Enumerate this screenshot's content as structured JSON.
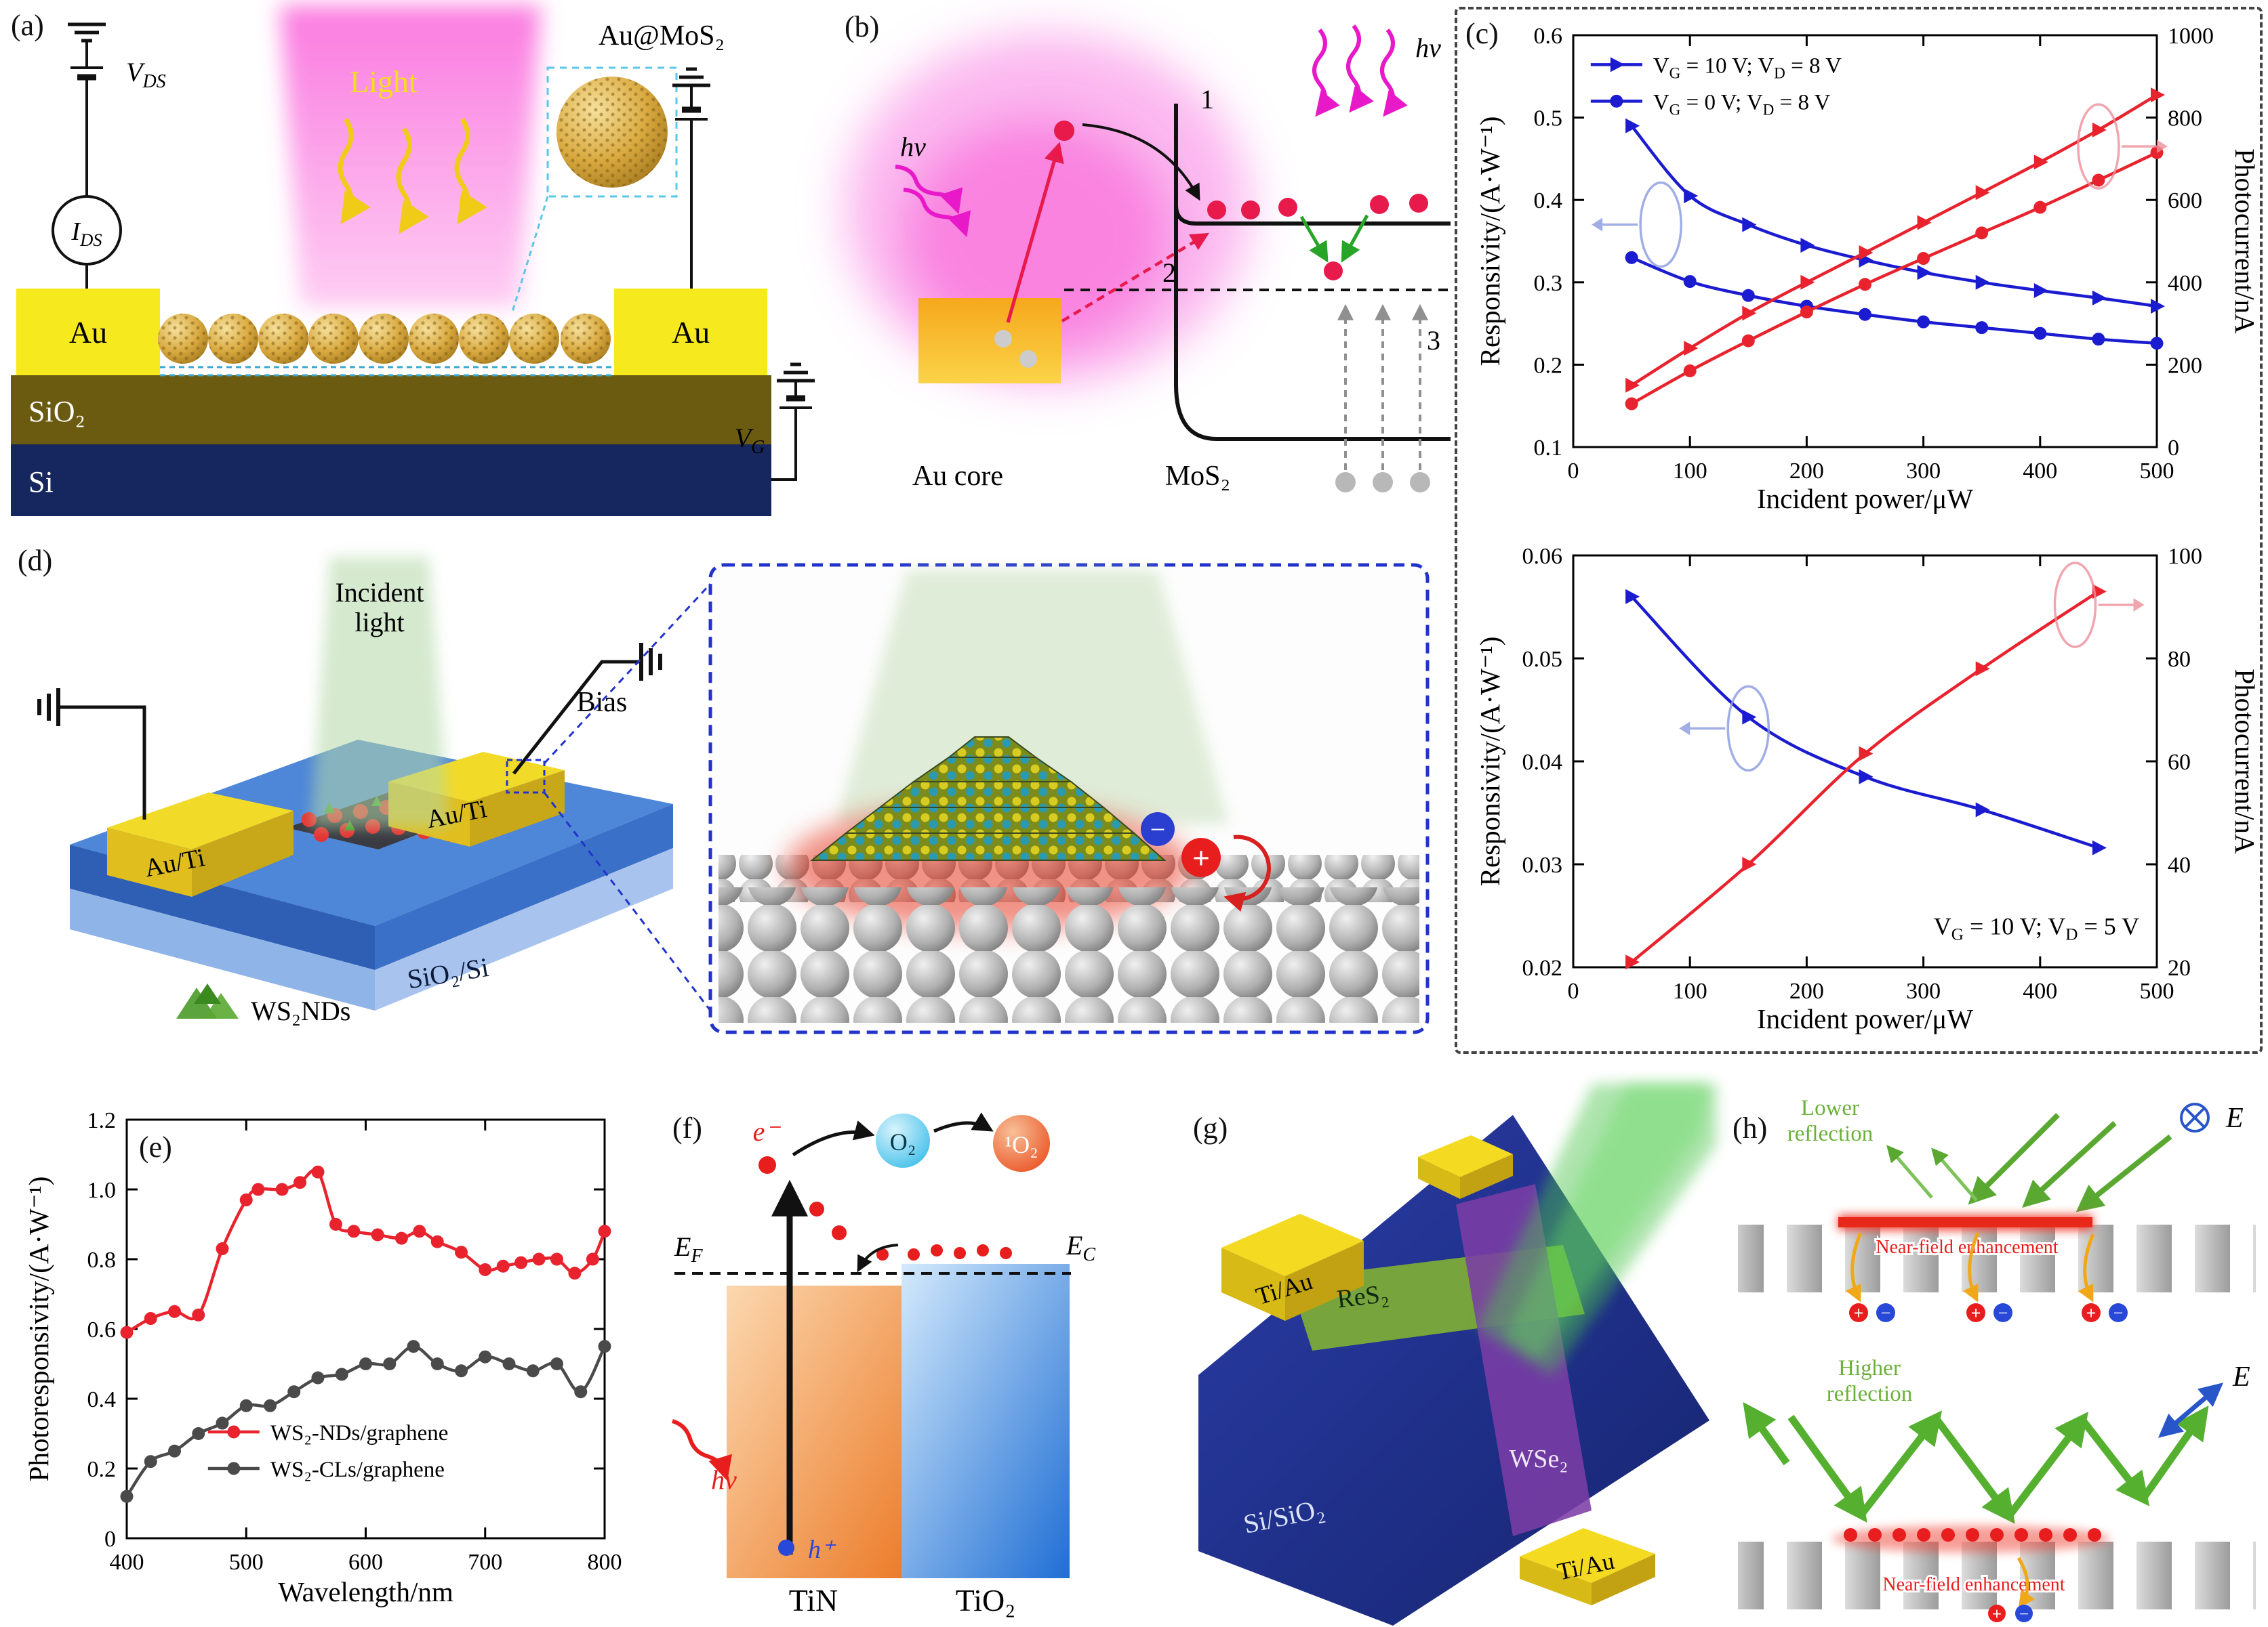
{
  "panels": {
    "a": {
      "tag": "(a)",
      "light": "Light",
      "au_mos2": "Au@MoS₂",
      "vds": "V~DS~",
      "ids": "I~DS~",
      "au_left": "Au",
      "au_right": "Au",
      "sio2": "SiO₂",
      "si": "Si",
      "vg": "V~G~"
    },
    "b": {
      "tag": "(b)",
      "hv_left": "hν",
      "hv_right": "hν",
      "step1": "1",
      "step2": "2",
      "step3": "3",
      "au_core": "Au core",
      "mos2": "MoS₂"
    },
    "c": {
      "tag": "(c)"
    },
    "d": {
      "tag": "(d)",
      "incident_line1": "Incident",
      "incident_line2": "light",
      "au_ti_left": "Au/Ti",
      "au_ti_right": "Au/Ti",
      "bias": "Bias",
      "substrate": "SiO₂/Si",
      "ws2nds": "WS₂NDs",
      "minus": "−",
      "plus": "+"
    },
    "e": {
      "tag": "(e)"
    },
    "f": {
      "tag": "(f)",
      "electron": "e⁻",
      "hole": "h⁺",
      "hv": "hν",
      "ef": "E~F~",
      "ec": "E~C~",
      "o2": "O₂",
      "singlet_o2": "¹O₂",
      "tin": "TiN",
      "tio2": "TiO₂"
    },
    "g": {
      "tag": "(g)",
      "ti_au_left": "Ti/Au",
      "ti_au_right": "Ti/Au",
      "res2": "ReS₂",
      "wse2": "WSe₂",
      "substrate": "Si/SiO₂"
    },
    "h": {
      "tag": "(h)",
      "lower_line1": "Lower",
      "lower_line2": "reflection",
      "higher_line1": "Higher",
      "higher_line2": "reflection",
      "near_field_top": "Near-field enhancement",
      "near_field_bottom": "Near-field enhancement",
      "e_top": "E",
      "e_bottom": "E",
      "plus": "+",
      "minus": "−"
    }
  },
  "chart_data": [
    {
      "id": "c1",
      "type": "line",
      "xlabel": "Incident power/μW",
      "ylabel_left": "Responsivity/(A·W⁻¹)",
      "ylabel_right": "Photocurrent/nA",
      "xlim": [
        0,
        500
      ],
      "xticks": [
        "0",
        "100",
        "200",
        "300",
        "400",
        "500"
      ],
      "ylim_left": [
        0.1,
        0.6
      ],
      "yticks_left": [
        "0.1",
        "0.2",
        "0.3",
        "0.4",
        "0.5",
        "0.6"
      ],
      "ylim_right": [
        0,
        1000
      ],
      "yticks_right": [
        "0",
        "200",
        "400",
        "600",
        "800",
        "1000"
      ],
      "legend": [
        {
          "label": "V~G~ = 10 V; V~D~ = 8 V",
          "color": "#1b1bd0",
          "marker": "triangle"
        },
        {
          "label": "V~G~ = 0 V; V~D~ = 8 V",
          "color": "#1b1bd0",
          "marker": "circle"
        }
      ],
      "series": [
        {
          "name": "responsivity VG=10V",
          "axis": "left",
          "color": "#1b1bd0",
          "marker": "triangle",
          "x": [
            50,
            100,
            150,
            200,
            250,
            300,
            350,
            400,
            450,
            500
          ],
          "y": [
            0.49,
            0.405,
            0.37,
            0.345,
            0.327,
            0.312,
            0.3,
            0.29,
            0.281,
            0.271
          ]
        },
        {
          "name": "responsivity VG=0V",
          "axis": "left",
          "color": "#1b1bd0",
          "marker": "circle",
          "x": [
            50,
            100,
            150,
            200,
            250,
            300,
            350,
            400,
            450,
            500
          ],
          "y": [
            0.33,
            0.301,
            0.284,
            0.271,
            0.261,
            0.252,
            0.245,
            0.238,
            0.231,
            0.226
          ]
        },
        {
          "name": "photocurrent VG=10V",
          "axis": "right",
          "color": "#e8232e",
          "marker": "triangle",
          "x": [
            50,
            100,
            150,
            200,
            250,
            300,
            350,
            400,
            450,
            500
          ],
          "y": [
            150,
            240,
            325,
            400,
            472,
            545,
            618,
            692,
            770,
            855
          ]
        },
        {
          "name": "photocurrent VG=0V",
          "axis": "right",
          "color": "#e8232e",
          "marker": "circle",
          "x": [
            50,
            100,
            150,
            200,
            250,
            300,
            350,
            400,
            450,
            500
          ],
          "y": [
            105,
            185,
            258,
            328,
            395,
            458,
            520,
            582,
            648,
            715
          ]
        }
      ],
      "indicators": [
        {
          "fx": 0.15,
          "fy": 0.46,
          "color": "#8a9ade",
          "dir": "left"
        },
        {
          "fx": 0.9,
          "fy": 0.27,
          "color": "#ee8f9a",
          "dir": "right"
        }
      ]
    },
    {
      "id": "c2",
      "type": "line",
      "xlabel": "Incident power/μW",
      "ylabel_left": "Responsivity/(A·W⁻¹)",
      "ylabel_right": "Photocurrent/nA",
      "xlim": [
        0,
        500
      ],
      "xticks": [
        "0",
        "100",
        "200",
        "300",
        "400",
        "500"
      ],
      "ylim_left": [
        0.02,
        0.06
      ],
      "yticks_left": [
        "0.02",
        "0.03",
        "0.04",
        "0.05",
        "0.06"
      ],
      "ylim_right": [
        20,
        100
      ],
      "yticks_right": [
        "20",
        "40",
        "60",
        "80",
        "100"
      ],
      "annotation": "V~G~ = 10 V; V~D~ = 5 V",
      "series": [
        {
          "name": "responsivity",
          "axis": "left",
          "color": "#1b1bd0",
          "marker": "triangle",
          "x": [
            50,
            150,
            250,
            350,
            450
          ],
          "y": [
            0.056,
            0.0443,
            0.0385,
            0.0353,
            0.0316
          ]
        },
        {
          "name": "photocurrent",
          "axis": "right",
          "color": "#e8232e",
          "marker": "triangle",
          "x": [
            50,
            150,
            250,
            350,
            450
          ],
          "y": [
            21,
            40,
            61.5,
            78,
            93
          ]
        }
      ],
      "indicators": [
        {
          "fx": 0.3,
          "fy": 0.42,
          "color": "#8a9ade",
          "dir": "left"
        },
        {
          "fx": 0.86,
          "fy": 0.12,
          "color": "#ee8f9a",
          "dir": "right"
        }
      ]
    },
    {
      "id": "e",
      "type": "line",
      "xlabel": "Wavelength/nm",
      "ylabel_left": "Photoresponsivity/(A·W⁻¹)",
      "xlim": [
        400,
        800
      ],
      "xticks": [
        "400",
        "500",
        "600",
        "700",
        "800"
      ],
      "ylim_left": [
        0,
        1.2
      ],
      "yticks_left": [
        "0",
        "0.2",
        "0.4",
        "0.6",
        "0.8",
        "1.0",
        "1.2"
      ],
      "legend": [
        {
          "label": "WS₂-NDs/graphene",
          "color": "#e8232e",
          "marker": "circle"
        },
        {
          "label": "WS₂-CLs/graphene",
          "color": "#4a4a4a",
          "marker": "circle"
        }
      ],
      "legend_pos": {
        "fx": 0.17,
        "fy": 0.72
      },
      "series": [
        {
          "name": "WS2-NDs/graphene",
          "axis": "left",
          "color": "#e8232e",
          "marker": "circle",
          "x": [
            400,
            420,
            440,
            460,
            480,
            500,
            510,
            530,
            545,
            560,
            575,
            590,
            610,
            630,
            645,
            660,
            680,
            700,
            715,
            730,
            745,
            760,
            775,
            790,
            800
          ],
          "y": [
            0.59,
            0.63,
            0.65,
            0.64,
            0.83,
            0.97,
            1.0,
            1.0,
            1.02,
            1.05,
            0.9,
            0.88,
            0.87,
            0.86,
            0.88,
            0.85,
            0.82,
            0.77,
            0.78,
            0.79,
            0.8,
            0.8,
            0.76,
            0.8,
            0.88
          ]
        },
        {
          "name": "WS2-CLs/graphene",
          "axis": "left",
          "color": "#4a4a4a",
          "marker": "circle",
          "x": [
            400,
            420,
            440,
            460,
            480,
            500,
            520,
            540,
            560,
            580,
            600,
            620,
            640,
            660,
            680,
            700,
            720,
            740,
            760,
            780,
            800
          ],
          "y": [
            0.12,
            0.22,
            0.25,
            0.3,
            0.33,
            0.38,
            0.38,
            0.42,
            0.46,
            0.47,
            0.5,
            0.5,
            0.55,
            0.5,
            0.48,
            0.52,
            0.5,
            0.48,
            0.5,
            0.42,
            0.55
          ]
        }
      ]
    }
  ]
}
